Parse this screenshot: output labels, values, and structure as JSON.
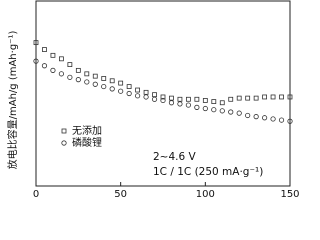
{
  "chart_data": {
    "type": "scatter",
    "y_label": "放电比容量/mAh/g (mAh·g⁻¹)",
    "annotations": [
      "2~4.6 V",
      "1C / 1C  (250 mA·g⁻¹)"
    ],
    "x": [
      0,
      5,
      10,
      15,
      20,
      25,
      30,
      35,
      40,
      45,
      50,
      55,
      60,
      65,
      70,
      75,
      80,
      85,
      90,
      95,
      100,
      105,
      110,
      115,
      120,
      125,
      130,
      135,
      140,
      145,
      150
    ],
    "series": [
      {
        "name": "无添加",
        "marker": "square",
        "color": "#333333",
        "values": [
          224,
          218,
          213,
          210,
          205,
          200,
          197,
          195,
          193,
          191,
          189,
          186,
          183,
          181,
          179,
          177,
          176,
          175,
          175,
          175,
          174,
          173,
          172,
          175,
          176,
          176,
          176,
          177,
          177,
          177,
          177
        ]
      },
      {
        "name": "磷酸锂",
        "marker": "circle",
        "color": "#333333",
        "values": [
          208,
          204,
          200,
          197,
          194,
          192,
          190,
          188,
          186,
          184,
          182,
          180,
          178,
          177,
          175,
          174,
          172,
          171,
          170,
          168,
          167,
          166,
          165,
          164,
          163,
          161,
          160,
          159,
          158,
          157,
          156
        ]
      }
    ],
    "xlim": [
      0,
      150
    ],
    "xticks": [
      0,
      50,
      100,
      150
    ],
    "ylim": [
      100,
      260
    ]
  }
}
